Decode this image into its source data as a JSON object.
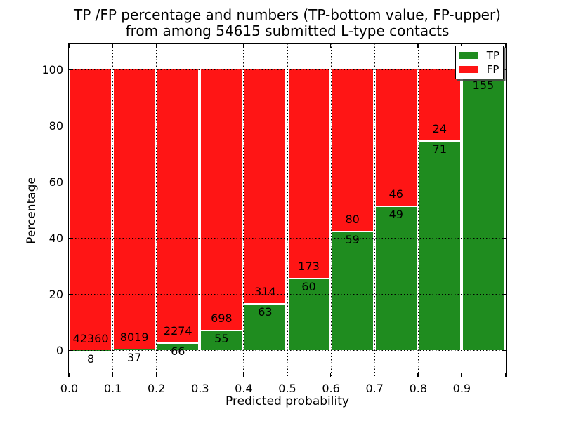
{
  "title": {
    "line1": "TP /FP percentage and numbers (TP-bottom value, FP-upper)",
    "line2": "from among 54615 submitted L-type contacts"
  },
  "axes": {
    "ylabel": "Percentage",
    "xlabel": "Predicted probability",
    "ytick_labels": [
      "0",
      "20",
      "40",
      "60",
      "80",
      "100"
    ],
    "xtick_labels": [
      "0.0",
      "0.1",
      "0.2",
      "0.3",
      "0.4",
      "0.5",
      "0.6",
      "0.7",
      "0.8",
      "0.9"
    ]
  },
  "legend": [
    {
      "label": "TP",
      "color": "#1f8c1f"
    },
    {
      "label": "FP",
      "color": "#ff1515"
    }
  ],
  "colors": {
    "tp_green": "#1f8c1f",
    "fp_red": "#ff1515",
    "text": "#000000",
    "background": "#ffffff"
  },
  "chart_data": {
    "type": "bar",
    "stacked": true,
    "normalized_to_percent": true,
    "title": "TP /FP percentage and numbers (TP-bottom value, FP-upper) from among 54615 submitted L-type contacts",
    "xlabel": "Predicted probability",
    "ylabel": "Percentage",
    "xlim": [
      0.0,
      1.0
    ],
    "ylim": [
      -10,
      110
    ],
    "yticks": [
      0,
      20,
      40,
      60,
      80,
      100
    ],
    "xticks": [
      0.0,
      0.1,
      0.2,
      0.3,
      0.4,
      0.5,
      0.6,
      0.7,
      0.8,
      0.9
    ],
    "grid": "dotted",
    "legend_position": "upper right",
    "total_submitted": 54615,
    "series_names": [
      "TP",
      "FP"
    ],
    "bars": [
      {
        "bin_start": 0.0,
        "bin_end": 0.1,
        "tp_count": 8,
        "fp_count": 42360,
        "tp_pct": 0.02
      },
      {
        "bin_start": 0.1,
        "bin_end": 0.2,
        "tp_count": 37,
        "fp_count": 8019,
        "tp_pct": 0.46
      },
      {
        "bin_start": 0.2,
        "bin_end": 0.3,
        "tp_count": 66,
        "fp_count": 2274,
        "tp_pct": 2.82
      },
      {
        "bin_start": 0.3,
        "bin_end": 0.4,
        "tp_count": 55,
        "fp_count": 698,
        "tp_pct": 7.3
      },
      {
        "bin_start": 0.4,
        "bin_end": 0.5,
        "tp_count": 63,
        "fp_count": 314,
        "tp_pct": 16.71
      },
      {
        "bin_start": 0.5,
        "bin_end": 0.6,
        "tp_count": 60,
        "fp_count": 173,
        "tp_pct": 25.75
      },
      {
        "bin_start": 0.6,
        "bin_end": 0.7,
        "tp_count": 59,
        "fp_count": 80,
        "tp_pct": 42.45
      },
      {
        "bin_start": 0.7,
        "bin_end": 0.8,
        "tp_count": 49,
        "fp_count": 46,
        "tp_pct": 51.58
      },
      {
        "bin_start": 0.8,
        "bin_end": 0.9,
        "tp_count": 71,
        "fp_count": 24,
        "tp_pct": 74.74
      },
      {
        "bin_start": 0.9,
        "bin_end": 1.0,
        "tp_count": 155,
        "fp_count": null,
        "tp_pct": 97.5
      }
    ]
  }
}
